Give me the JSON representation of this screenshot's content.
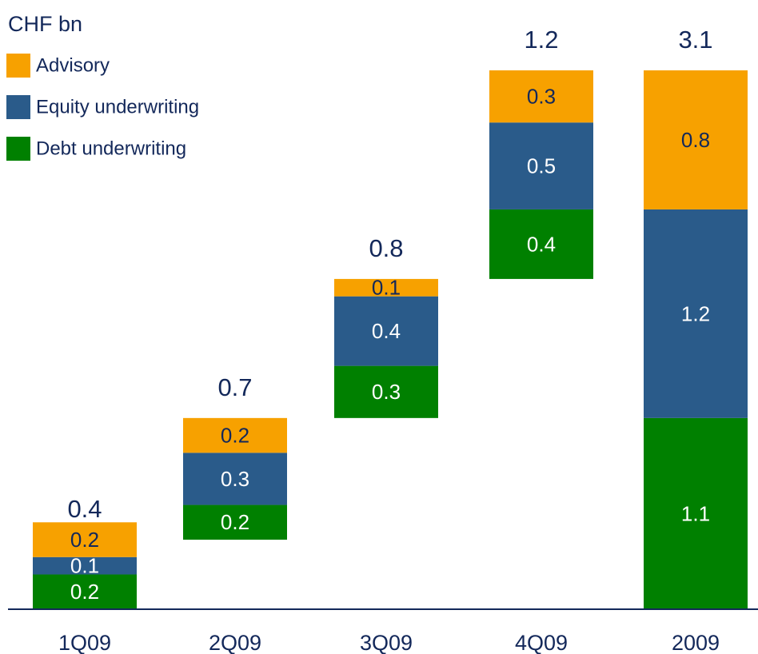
{
  "chart_data": {
    "type": "waterfall",
    "unit_label": "CHF bn",
    "categories": [
      "1Q09",
      "2Q09",
      "3Q09",
      "4Q09",
      "2009"
    ],
    "totals": [
      0.4,
      0.7,
      0.8,
      1.2,
      3.1
    ],
    "series": [
      {
        "name": "Debt underwriting",
        "color": "#008000",
        "values": [
          0.2,
          0.2,
          0.3,
          0.4,
          1.1
        ]
      },
      {
        "name": "Equity underwriting",
        "color": "#2a5b8a",
        "values": [
          0.1,
          0.3,
          0.4,
          0.5,
          1.2
        ]
      },
      {
        "name": "Advisory",
        "color": "#f7a100",
        "values": [
          0.2,
          0.2,
          0.1,
          0.3,
          0.8
        ]
      }
    ],
    "legend": "top-left"
  }
}
